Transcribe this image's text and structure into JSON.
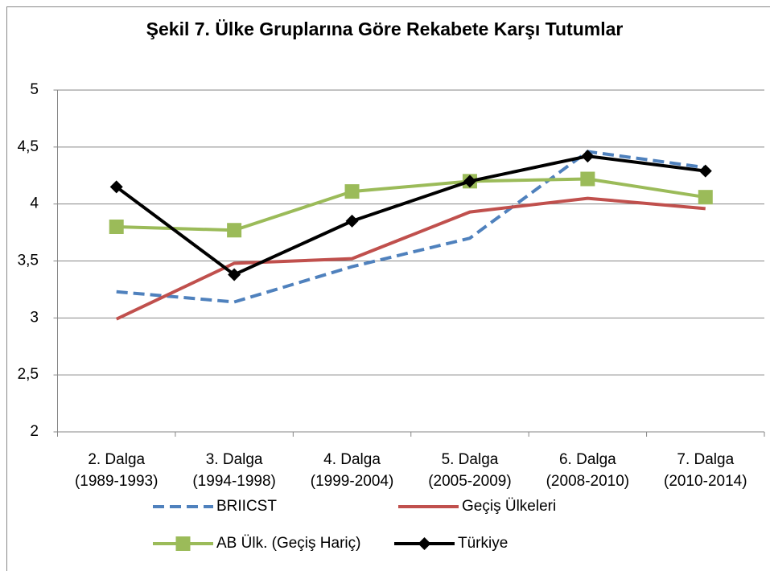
{
  "chart_data": {
    "type": "line",
    "title": "Şekil 7. Ülke Gruplarına Göre Rekabete Karşı Tutumlar",
    "categories": [
      "2. Dalga\n(1989-1993)",
      "3. Dalga\n(1994-1998)",
      "4. Dalga\n(1999-2004)",
      "5. Dalga\n(2005-2009)",
      "6. Dalga\n(2008-2010)",
      "7. Dalga\n(2010-2014)"
    ],
    "series": [
      {
        "name": "BRIICST",
        "color": "#4f81bd",
        "dashed": true,
        "values": [
          3.23,
          3.14,
          3.45,
          3.7,
          4.46,
          4.32
        ]
      },
      {
        "name": "Geçiş Ülkeleri",
        "color": "#c0504d",
        "values": [
          2.99,
          3.48,
          3.52,
          3.93,
          4.05,
          3.96
        ]
      },
      {
        "name": "AB Ülk. (Geçiş Hariç)",
        "color": "#9bbb59",
        "marker": "square",
        "values": [
          3.8,
          3.77,
          4.11,
          4.2,
          4.22,
          4.06
        ]
      },
      {
        "name": "Türkiye",
        "color": "#000000",
        "marker": "diamond",
        "values": [
          4.15,
          3.38,
          3.85,
          4.2,
          4.42,
          4.29
        ]
      }
    ],
    "ylim": [
      2,
      5
    ],
    "yticks": [
      2,
      {
        "value": 2.5,
        "label": "2,5"
      },
      3,
      {
        "value": 3.5,
        "label": "3,5"
      },
      4,
      {
        "value": 4.5,
        "label": "4,5"
      },
      5
    ],
    "grid": true,
    "legend": "bottom"
  }
}
